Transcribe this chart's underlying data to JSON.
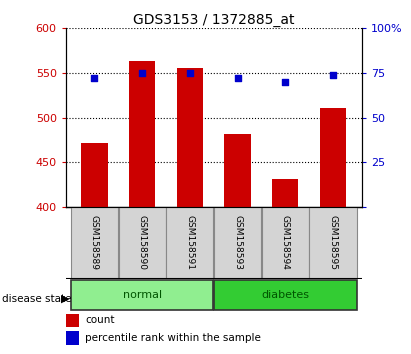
{
  "title": "GDS3153 / 1372885_at",
  "samples": [
    "GSM158589",
    "GSM158590",
    "GSM158591",
    "GSM158593",
    "GSM158594",
    "GSM158595"
  ],
  "counts": [
    472,
    563,
    556,
    482,
    432,
    511
  ],
  "percentiles": [
    72,
    75,
    75,
    72,
    70,
    74
  ],
  "ylim_left": [
    400,
    600
  ],
  "ylim_right": [
    0,
    100
  ],
  "yticks_left": [
    400,
    450,
    500,
    550,
    600
  ],
  "yticks_right": [
    0,
    25,
    50,
    75,
    100
  ],
  "bar_color": "#cc0000",
  "dot_color": "#0000cc",
  "normal_color": "#90ee90",
  "diabetes_color": "#33cc33",
  "legend_count_label": "count",
  "legend_pct_label": "percentile rank within the sample",
  "disease_state_label": "disease state",
  "normal_label": "normal",
  "diabetes_label": "diabetes",
  "title_fontsize": 10,
  "tick_label_fontsize": 8,
  "bar_width": 0.55,
  "background_color": "#ffffff"
}
